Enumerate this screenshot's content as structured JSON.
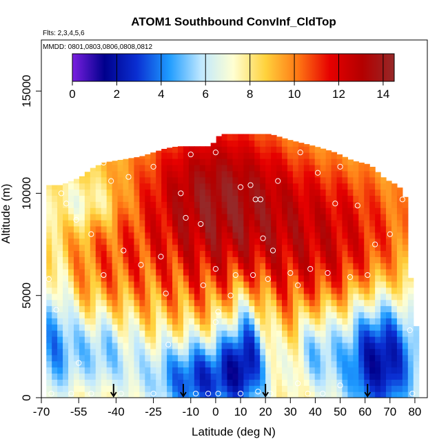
{
  "chart_data": {
    "type": "heatmap",
    "title": "ATOM1 Southbound ConvInf_CldTop",
    "annotations": [
      "Flts: 2,3,4,5,6",
      "MMDD: 0801,0803,0806,0808,0812"
    ],
    "xlabel": "Latitude (deg N)",
    "ylabel": "Altitude (m)",
    "xlim": [
      -70,
      85
    ],
    "ylim": [
      0,
      17500
    ],
    "x_ticks": [
      -70,
      -55,
      -40,
      -25,
      -10,
      0,
      10,
      20,
      30,
      40,
      50,
      60,
      70,
      80
    ],
    "x_tick_labels": [
      "-70",
      "-55",
      "-40",
      "-25",
      "-10",
      "0",
      "10",
      "20",
      "30",
      "40",
      "50",
      "60",
      "70",
      "80"
    ],
    "y_ticks": [
      0,
      5000,
      10000,
      15000
    ],
    "y_tick_labels": [
      "0",
      "5000",
      "10000",
      "15000"
    ],
    "colorbar": {
      "range": [
        0,
        14.5
      ],
      "ticks": [
        0,
        2,
        4,
        6,
        8,
        10,
        12,
        14
      ],
      "tick_labels": [
        "0",
        "2",
        "4",
        "6",
        "8",
        "10",
        "12",
        "14"
      ],
      "colors": [
        "#7a1fe0",
        "#00008c",
        "#0a2fd2",
        "#1e9bff",
        "#bfe8ff",
        "#ffffd2",
        "#ffd23c",
        "#ff7814",
        "#e60000",
        "#b40000",
        "#962828"
      ]
    },
    "field_summary": [
      {
        "lat_range": [
          -68,
          -20
        ],
        "alt_range": [
          0,
          4000
        ],
        "approx_value": 5.5
      },
      {
        "lat_range": [
          -68,
          -30
        ],
        "alt_range": [
          4000,
          10500
        ],
        "approx_value": 8.5
      },
      {
        "lat_range": [
          -30,
          60
        ],
        "alt_range": [
          4500,
          9000
        ],
        "approx_value": 10.5
      },
      {
        "lat_range": [
          -25,
          30
        ],
        "alt_range": [
          9000,
          13000
        ],
        "approx_value": 13.0
      },
      {
        "lat_range": [
          30,
          73
        ],
        "alt_range": [
          8000,
          11500
        ],
        "approx_value": 10.0
      },
      {
        "lat_range": [
          -20,
          15
        ],
        "alt_range": [
          0,
          2500
        ],
        "approx_value": 2.5
      },
      {
        "lat_range": [
          55,
          80
        ],
        "alt_range": [
          0,
          4500
        ],
        "approx_value": 2.0
      }
    ],
    "arrows_lat": [
      -41,
      -13,
      20,
      61
    ],
    "observation_points": [
      {
        "lat": -62,
        "alt": 10000
      },
      {
        "lat": -60,
        "alt": 9500
      },
      {
        "lat": -56,
        "alt": 8700
      },
      {
        "lat": -50,
        "alt": 8000
      },
      {
        "lat": -45,
        "alt": 11500
      },
      {
        "lat": -42,
        "alt": 10600
      },
      {
        "lat": -37,
        "alt": 7200
      },
      {
        "lat": -35,
        "alt": 10800
      },
      {
        "lat": -30,
        "alt": 6500
      },
      {
        "lat": -25,
        "alt": 11300
      },
      {
        "lat": -22,
        "alt": 6900
      },
      {
        "lat": -20,
        "alt": 5100
      },
      {
        "lat": -19,
        "alt": 2600
      },
      {
        "lat": -14,
        "alt": 10000
      },
      {
        "lat": -10,
        "alt": 11900
      },
      {
        "lat": -12,
        "alt": 8800
      },
      {
        "lat": -5,
        "alt": 5500
      },
      {
        "lat": -6,
        "alt": 8500
      },
      {
        "lat": 0,
        "alt": 12000
      },
      {
        "lat": 0,
        "alt": 6300
      },
      {
        "lat": 1,
        "alt": 4200
      },
      {
        "lat": 0,
        "alt": 3700
      },
      {
        "lat": 6,
        "alt": 5000
      },
      {
        "lat": 8,
        "alt": 6000
      },
      {
        "lat": 10,
        "alt": 10300
      },
      {
        "lat": 14,
        "alt": 10400
      },
      {
        "lat": 15,
        "alt": 6000
      },
      {
        "lat": 16,
        "alt": 9700
      },
      {
        "lat": 18,
        "alt": 9700
      },
      {
        "lat": 19,
        "alt": 7800
      },
      {
        "lat": 21,
        "alt": 5800
      },
      {
        "lat": 23,
        "alt": 7200
      },
      {
        "lat": 25,
        "alt": 10600
      },
      {
        "lat": 27,
        "alt": 13100
      },
      {
        "lat": 30,
        "alt": 6100
      },
      {
        "lat": 33,
        "alt": 5500
      },
      {
        "lat": 34,
        "alt": 12000
      },
      {
        "lat": 38,
        "alt": 6300
      },
      {
        "lat": 41,
        "alt": 11000
      },
      {
        "lat": 45,
        "alt": 6100
      },
      {
        "lat": 48,
        "alt": 9500
      },
      {
        "lat": 50,
        "alt": 11300
      },
      {
        "lat": 54,
        "alt": 5900
      },
      {
        "lat": 57,
        "alt": 9400
      },
      {
        "lat": 61,
        "alt": 6000
      },
      {
        "lat": 64,
        "alt": 7500
      },
      {
        "lat": 70,
        "alt": 8000
      },
      {
        "lat": 75,
        "alt": 9700
      },
      {
        "lat": 78,
        "alt": 3300
      },
      {
        "lat": 79,
        "alt": 200
      },
      {
        "lat": 50,
        "alt": 600
      },
      {
        "lat": 43,
        "alt": 200
      },
      {
        "lat": 37,
        "alt": 200
      },
      {
        "lat": 33,
        "alt": 700
      },
      {
        "lat": 22,
        "alt": 200
      },
      {
        "lat": 17,
        "alt": 300
      },
      {
        "lat": 10,
        "alt": 200
      },
      {
        "lat": 1,
        "alt": 200
      },
      {
        "lat": -3,
        "alt": 200
      },
      {
        "lat": -8,
        "alt": 200
      },
      {
        "lat": -25,
        "alt": 200
      },
      {
        "lat": -38,
        "alt": 200
      },
      {
        "lat": -50,
        "alt": 200
      },
      {
        "lat": -58,
        "alt": 200
      },
      {
        "lat": -66,
        "alt": 200
      },
      {
        "lat": -67,
        "alt": 5800
      },
      {
        "lat": -64,
        "alt": 4300
      },
      {
        "lat": -55,
        "alt": 1700
      },
      {
        "lat": -45,
        "alt": 6000
      }
    ]
  }
}
